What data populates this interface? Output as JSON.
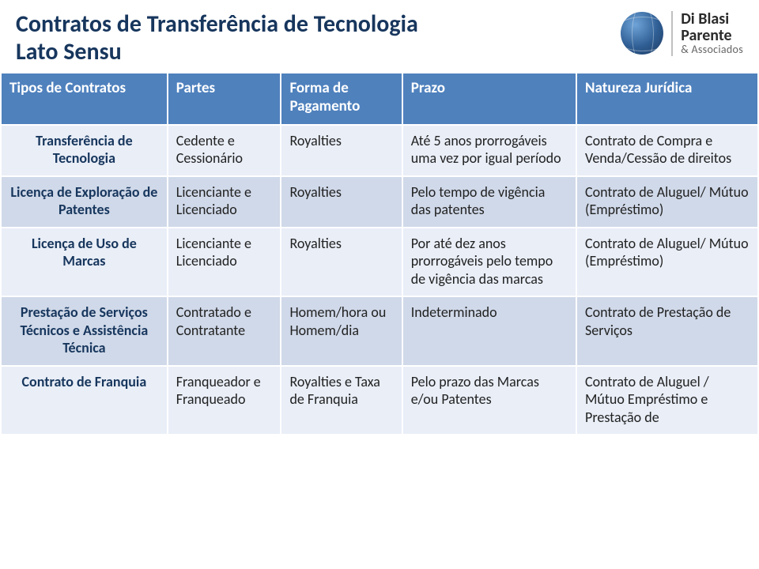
{
  "title": {
    "line1": "Contratos de Transferência de Tecnologia",
    "line2": "Lato Sensu"
  },
  "brand": {
    "line1": "Di Blasi",
    "line2": "Parente",
    "line3": "& Associados"
  },
  "table": {
    "columns": [
      "Tipos de Contratos",
      "Partes",
      "Forma de Pagamento",
      "Prazo",
      "Natureza Jurídica"
    ],
    "rows": [
      {
        "band": "light",
        "cells": [
          "Transferência de Tecnologia",
          "Cedente e Cessionário",
          "Royalties",
          "Até 5 anos prorrogáveis uma vez por igual período",
          "Contrato de Compra e Venda/Cessão de direitos"
        ]
      },
      {
        "band": "mid",
        "cells": [
          "Licença de Exploração de Patentes",
          "Licenciante e Licenciado",
          "Royalties",
          "Pelo tempo de vigência das patentes",
          "Contrato de Aluguel/ Mútuo (Empréstimo)"
        ]
      },
      {
        "band": "light",
        "cells": [
          "Licença de Uso de Marcas",
          "Licenciante e Licenciado",
          "Royalties",
          "Por até dez anos prorrogáveis pelo tempo de vigência das marcas",
          "Contrato de Aluguel/ Mútuo (Empréstimo)"
        ]
      },
      {
        "band": "mid",
        "cells": [
          "Prestação de Serviços Técnicos e Assistência Técnica",
          "Contratado e Contratante",
          "Homem/hora ou Homem/dia",
          "Indeterminado",
          "Contrato de Prestação de Serviços"
        ]
      },
      {
        "band": "light",
        "cells": [
          "Contrato de Franquia",
          "Franqueador e Franqueado",
          "Royalties e Taxa de Franquia",
          "Pelo prazo das Marcas e/ou Patentes",
          "Contrato de Aluguel / Mútuo Empréstimo e Prestação de"
        ]
      }
    ]
  }
}
